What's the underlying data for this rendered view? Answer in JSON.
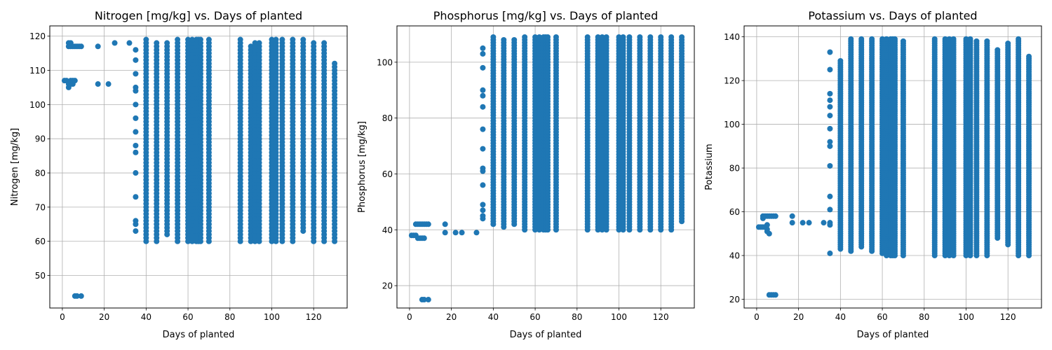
{
  "chart_data": [
    {
      "type": "scatter",
      "title": "Nitrogen [mg/kg] vs. Days of planted",
      "xlabel": "Days of planted",
      "ylabel": "Nitrogen [mg/kg]",
      "xlim": [
        -6,
        136
      ],
      "ylim": [
        40.5,
        123
      ],
      "xticks": [
        0,
        20,
        40,
        60,
        80,
        100,
        120
      ],
      "yticks": [
        50,
        60,
        70,
        80,
        90,
        100,
        110,
        120
      ],
      "grid": true,
      "color": "#1f77b4",
      "ranges": [
        [
          40,
          60,
          119
        ],
        [
          45,
          60,
          118
        ],
        [
          50,
          62,
          118
        ],
        [
          55,
          60,
          119
        ],
        [
          60,
          60,
          119
        ],
        [
          62,
          60,
          119
        ],
        [
          64,
          60,
          119
        ],
        [
          65,
          60,
          119
        ],
        [
          66,
          60,
          119
        ],
        [
          70,
          60,
          119
        ],
        [
          85,
          60,
          119
        ],
        [
          90,
          60,
          117
        ],
        [
          92,
          60,
          118
        ],
        [
          94,
          60,
          118
        ],
        [
          100,
          60,
          119
        ],
        [
          102,
          60,
          119
        ],
        [
          105,
          60,
          119
        ],
        [
          110,
          60,
          119
        ],
        [
          115,
          63,
          119
        ],
        [
          120,
          60,
          118
        ],
        [
          125,
          60,
          118
        ],
        [
          130,
          60,
          112
        ]
      ],
      "points": [
        [
          1,
          107
        ],
        [
          2,
          107
        ],
        [
          3,
          105
        ],
        [
          3,
          106
        ],
        [
          4,
          107
        ],
        [
          4,
          106
        ],
        [
          5,
          106
        ],
        [
          5,
          107
        ],
        [
          6,
          107
        ],
        [
          3,
          118
        ],
        [
          3,
          117
        ],
        [
          4,
          117
        ],
        [
          4,
          118
        ],
        [
          5,
          117
        ],
        [
          6,
          117
        ],
        [
          7,
          117
        ],
        [
          8,
          117
        ],
        [
          9,
          117
        ],
        [
          6,
          44
        ],
        [
          7,
          44
        ],
        [
          9,
          44
        ],
        [
          17,
          117
        ],
        [
          17,
          106
        ],
        [
          22,
          106
        ],
        [
          25,
          118
        ],
        [
          32,
          118
        ],
        [
          35,
          116
        ],
        [
          35,
          113
        ],
        [
          35,
          109
        ],
        [
          35,
          105
        ],
        [
          35,
          104
        ],
        [
          35,
          100
        ],
        [
          35,
          96
        ],
        [
          35,
          92
        ],
        [
          35,
          88
        ],
        [
          35,
          86
        ],
        [
          35,
          80
        ],
        [
          35,
          73
        ],
        [
          35,
          66
        ],
        [
          35,
          65
        ],
        [
          35,
          63
        ]
      ]
    },
    {
      "type": "scatter",
      "title": "Phosphorus [mg/kg] vs. Days of planted",
      "xlabel": "Days of planted",
      "ylabel": "Phosphorus [mg/kg]",
      "xlim": [
        -6,
        136
      ],
      "ylim": [
        12,
        113
      ],
      "xticks": [
        0,
        20,
        40,
        60,
        80,
        100,
        120
      ],
      "yticks": [
        20,
        40,
        60,
        80,
        100
      ],
      "grid": true,
      "color": "#1f77b4",
      "ranges": [
        [
          40,
          42,
          109
        ],
        [
          45,
          41,
          108
        ],
        [
          50,
          42,
          108
        ],
        [
          55,
          40,
          109
        ],
        [
          60,
          40,
          109
        ],
        [
          62,
          40,
          109
        ],
        [
          64,
          40,
          109
        ],
        [
          65,
          40,
          109
        ],
        [
          66,
          40,
          109
        ],
        [
          70,
          40,
          109
        ],
        [
          85,
          40,
          109
        ],
        [
          90,
          40,
          109
        ],
        [
          92,
          40,
          109
        ],
        [
          94,
          40,
          109
        ],
        [
          100,
          40,
          109
        ],
        [
          102,
          40,
          109
        ],
        [
          105,
          40,
          109
        ],
        [
          110,
          40,
          109
        ],
        [
          115,
          40,
          109
        ],
        [
          120,
          40,
          109
        ],
        [
          125,
          40,
          109
        ],
        [
          130,
          43,
          109
        ]
      ],
      "points": [
        [
          1,
          38
        ],
        [
          2,
          38
        ],
        [
          3,
          38
        ],
        [
          4,
          37
        ],
        [
          5,
          37
        ],
        [
          6,
          37
        ],
        [
          7,
          37
        ],
        [
          3,
          42
        ],
        [
          4,
          42
        ],
        [
          5,
          42
        ],
        [
          6,
          42
        ],
        [
          7,
          42
        ],
        [
          8,
          42
        ],
        [
          9,
          42
        ],
        [
          6,
          15
        ],
        [
          7,
          15
        ],
        [
          9,
          15
        ],
        [
          17,
          42
        ],
        [
          17,
          39
        ],
        [
          22,
          39
        ],
        [
          25,
          39
        ],
        [
          32,
          39
        ],
        [
          35,
          105
        ],
        [
          35,
          103
        ],
        [
          35,
          98
        ],
        [
          35,
          90
        ],
        [
          35,
          88
        ],
        [
          35,
          84
        ],
        [
          35,
          76
        ],
        [
          35,
          69
        ],
        [
          35,
          62
        ],
        [
          35,
          61
        ],
        [
          35,
          56
        ],
        [
          35,
          49
        ],
        [
          35,
          47
        ],
        [
          35,
          45
        ],
        [
          35,
          44
        ]
      ]
    },
    {
      "type": "scatter",
      "title": "Potassium vs. Days of planted",
      "xlabel": "Days of planted",
      "ylabel": "Potassium",
      "xlim": [
        -6,
        136
      ],
      "ylim": [
        16,
        145
      ],
      "xticks": [
        0,
        20,
        40,
        60,
        80,
        100,
        120
      ],
      "yticks": [
        20,
        40,
        60,
        80,
        100,
        120,
        140
      ],
      "grid": true,
      "color": "#1f77b4",
      "ranges": [
        [
          40,
          43,
          129
        ],
        [
          45,
          42,
          139
        ],
        [
          50,
          44,
          139
        ],
        [
          55,
          42,
          139
        ],
        [
          60,
          41,
          139
        ],
        [
          62,
          40,
          139
        ],
        [
          64,
          40,
          139
        ],
        [
          65,
          40,
          139
        ],
        [
          66,
          40,
          139
        ],
        [
          70,
          40,
          138
        ],
        [
          85,
          40,
          139
        ],
        [
          90,
          40,
          139
        ],
        [
          92,
          40,
          139
        ],
        [
          94,
          40,
          139
        ],
        [
          100,
          40,
          139
        ],
        [
          102,
          40,
          139
        ],
        [
          105,
          40,
          138
        ],
        [
          110,
          40,
          138
        ],
        [
          115,
          48,
          134
        ],
        [
          120,
          45,
          137
        ],
        [
          125,
          40,
          139
        ],
        [
          130,
          40,
          131
        ]
      ],
      "points": [
        [
          1,
          53
        ],
        [
          2,
          53
        ],
        [
          3,
          53
        ],
        [
          4,
          53
        ],
        [
          5,
          52
        ],
        [
          5,
          51
        ],
        [
          6,
          50
        ],
        [
          5,
          54
        ],
        [
          3,
          57
        ],
        [
          3,
          58
        ],
        [
          4,
          58
        ],
        [
          5,
          58
        ],
        [
          6,
          58
        ],
        [
          7,
          58
        ],
        [
          8,
          58
        ],
        [
          9,
          58
        ],
        [
          6,
          22
        ],
        [
          7,
          22
        ],
        [
          8,
          22
        ],
        [
          9,
          22
        ],
        [
          17,
          58
        ],
        [
          17,
          55
        ],
        [
          22,
          55
        ],
        [
          25,
          55
        ],
        [
          32,
          55
        ],
        [
          35,
          133
        ],
        [
          35,
          125
        ],
        [
          35,
          114
        ],
        [
          35,
          111
        ],
        [
          35,
          108
        ],
        [
          35,
          104
        ],
        [
          35,
          98
        ],
        [
          35,
          92
        ],
        [
          35,
          90
        ],
        [
          35,
          81
        ],
        [
          35,
          67
        ],
        [
          35,
          61
        ],
        [
          35,
          55
        ],
        [
          35,
          54
        ],
        [
          35,
          41
        ]
      ]
    }
  ]
}
